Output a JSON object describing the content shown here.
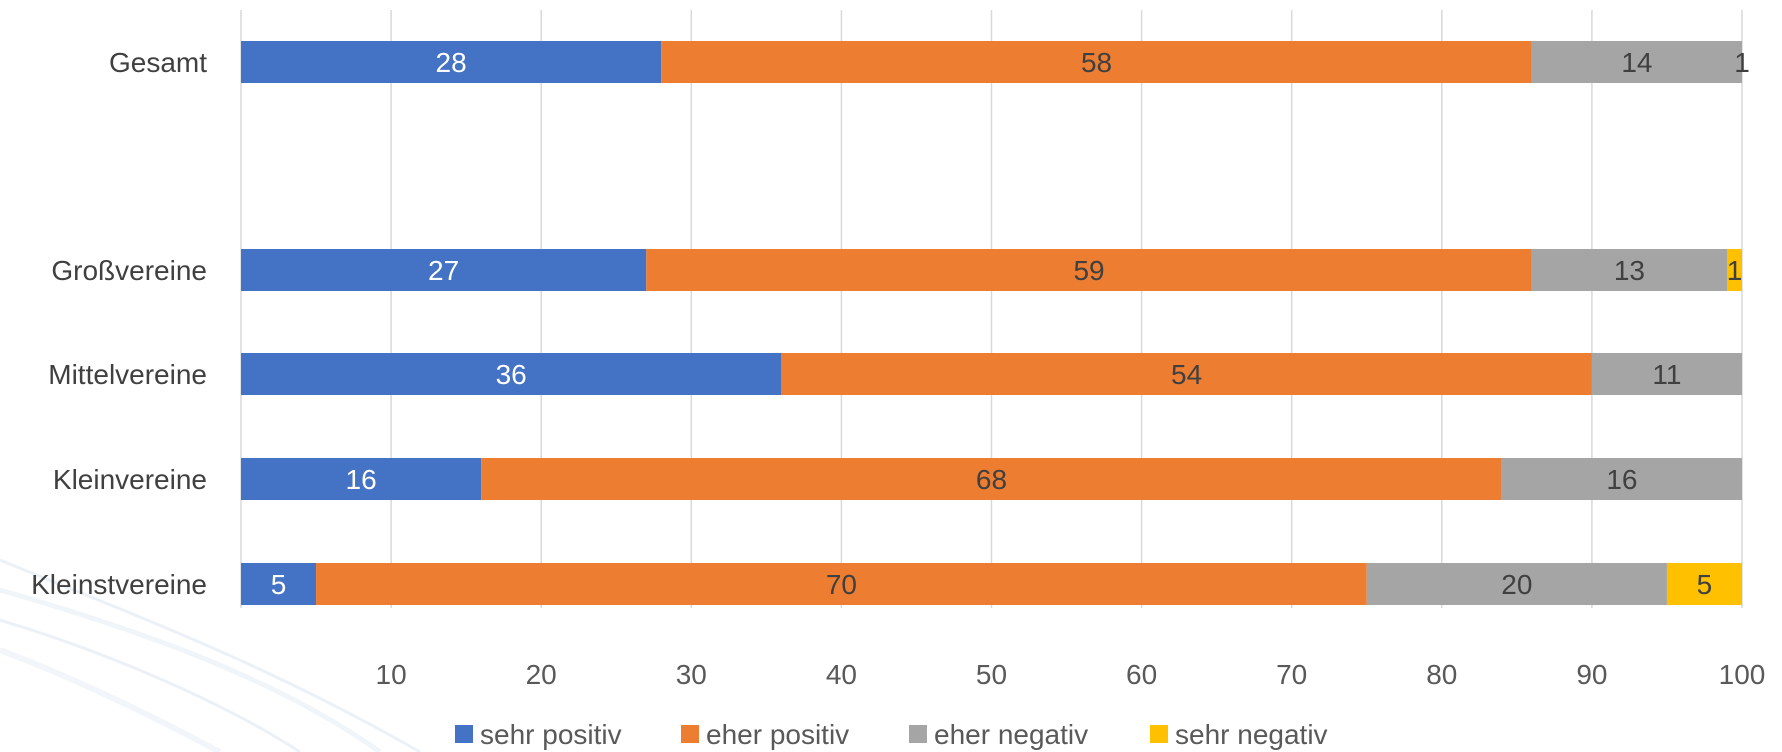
{
  "chart_data": {
    "type": "bar",
    "orientation": "horizontal",
    "stacked": true,
    "categories": [
      "Gesamt",
      "Großvereine",
      "Mittelvereine",
      "Kleinvereine",
      "Kleinstvereine"
    ],
    "series": [
      {
        "name": "sehr positiv",
        "color": "#4472C4",
        "label_color": "#ffffff",
        "values": [
          28,
          27,
          36,
          16,
          5
        ]
      },
      {
        "name": "eher positiv",
        "color": "#ED7D31",
        "label_color": "#404040",
        "values": [
          58,
          59,
          54,
          68,
          70
        ]
      },
      {
        "name": "eher negativ",
        "color": "#A5A5A5",
        "label_color": "#404040",
        "values": [
          14,
          13,
          11,
          16,
          20
        ]
      },
      {
        "name": "sehr negativ",
        "color": "#FFC000",
        "label_color": "#404040",
        "values": [
          1,
          1,
          0,
          0,
          5
        ]
      }
    ],
    "xlim": [
      0,
      100
    ],
    "xticks": [
      10,
      20,
      30,
      40,
      50,
      60,
      70,
      80,
      90,
      100
    ],
    "grid": true,
    "legend": "bottom",
    "title": "",
    "xlabel": "",
    "ylabel": ""
  }
}
